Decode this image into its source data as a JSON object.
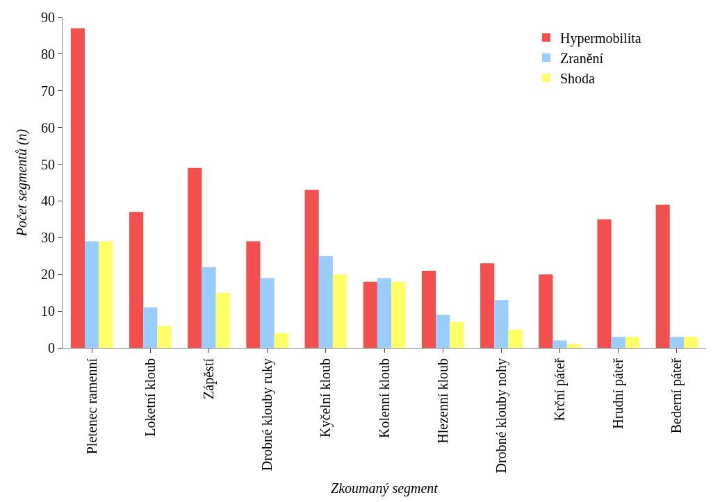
{
  "chart_data": {
    "type": "bar",
    "xlabel": "Zkoumaný segment",
    "ylabel": "Počet segmentů (n)",
    "categories": [
      "Pletenec ramenní",
      "Loketní kloub",
      "Zápěstí",
      "Drobné klouby ruky",
      "Kyčelní kloub",
      "Kolenní kloub",
      "Hlezenní kloub",
      "Drobné klouby nohy",
      "Krční páteř",
      "Hrudní páteř",
      "Bederní páteř"
    ],
    "series": [
      {
        "name": "Hypermobilita",
        "color": "#f24f4f",
        "values": [
          87,
          37,
          49,
          29,
          43,
          18,
          21,
          23,
          20,
          35,
          39
        ]
      },
      {
        "name": "Zranění",
        "color": "#99ccff",
        "values": [
          29,
          11,
          22,
          19,
          25,
          19,
          9,
          13,
          2,
          3,
          3
        ]
      },
      {
        "name": "Shoda",
        "color": "#ffff66",
        "values": [
          29,
          6,
          15,
          4,
          20,
          18,
          7,
          5,
          1,
          3,
          3
        ]
      }
    ],
    "ylim": [
      0,
      90
    ],
    "yticks": [
      0,
      10,
      20,
      30,
      40,
      50,
      60,
      70,
      80,
      90
    ],
    "grid": false,
    "legend": "top right"
  }
}
